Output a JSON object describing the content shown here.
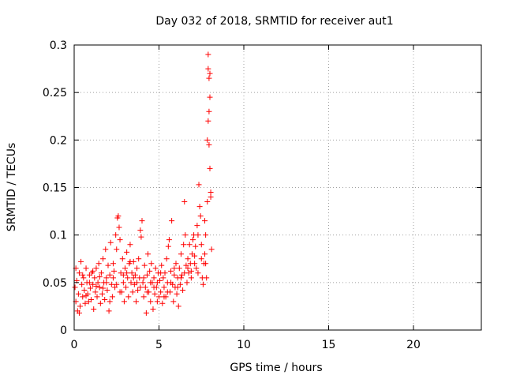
{
  "chart_data": {
    "type": "scatter",
    "title": "Day 032 of 2018, SRMTID for receiver aut1",
    "xlabel": "GPS time / hours",
    "ylabel": "SRMTID / TECUs",
    "xlim": [
      0,
      24
    ],
    "ylim": [
      0,
      0.3
    ],
    "xticks": [
      0,
      5,
      10,
      15,
      20
    ],
    "xtick_labels": [
      "0",
      "5",
      "10",
      "15",
      "20"
    ],
    "yticks": [
      0,
      0.05,
      0.1,
      0.15,
      0.2,
      0.25,
      0.3
    ],
    "ytick_labels": [
      "0",
      "0.05",
      "0.1",
      "0.15",
      "0.2",
      "0.25",
      "0.3"
    ],
    "grid": true,
    "marker": "+",
    "color": "#ff0000",
    "series": [
      {
        "name": "aut1",
        "points": [
          [
            0.05,
            0.045
          ],
          [
            0.1,
            0.03
          ],
          [
            0.15,
            0.052
          ],
          [
            0.2,
            0.02
          ],
          [
            0.25,
            0.038
          ],
          [
            0.3,
            0.06
          ],
          [
            0.35,
            0.025
          ],
          [
            0.4,
            0.072
          ],
          [
            0.45,
            0.048
          ],
          [
            0.5,
            0.035
          ],
          [
            0.55,
            0.055
          ],
          [
            0.6,
            0.042
          ],
          [
            0.65,
            0.028
          ],
          [
            0.7,
            0.065
          ],
          [
            0.75,
            0.05
          ],
          [
            0.8,
            0.038
          ],
          [
            0.85,
            0.03
          ],
          [
            0.9,
            0.058
          ],
          [
            0.95,
            0.044
          ],
          [
            1.0,
            0.032
          ],
          [
            1.05,
            0.06
          ],
          [
            1.1,
            0.048
          ],
          [
            1.15,
            0.022
          ],
          [
            1.2,
            0.055
          ],
          [
            1.25,
            0.04
          ],
          [
            1.3,
            0.065
          ],
          [
            1.35,
            0.035
          ],
          [
            1.4,
            0.05
          ],
          [
            1.45,
            0.07
          ],
          [
            1.5,
            0.045
          ],
          [
            1.55,
            0.028
          ],
          [
            1.6,
            0.06
          ],
          [
            1.65,
            0.038
          ],
          [
            1.7,
            0.075
          ],
          [
            1.75,
            0.05
          ],
          [
            1.8,
            0.032
          ],
          [
            1.85,
            0.085
          ],
          [
            1.9,
            0.055
          ],
          [
            1.95,
            0.042
          ],
          [
            2.0,
            0.068
          ],
          [
            2.05,
            0.02
          ],
          [
            2.1,
            0.058
          ],
          [
            2.15,
            0.092
          ],
          [
            2.2,
            0.048
          ],
          [
            2.25,
            0.035
          ],
          [
            2.3,
            0.07
          ],
          [
            2.35,
            0.062
          ],
          [
            2.4,
            0.045
          ],
          [
            2.45,
            0.1
          ],
          [
            2.5,
            0.085
          ],
          [
            2.55,
            0.118
          ],
          [
            2.6,
            0.12
          ],
          [
            2.65,
            0.108
          ],
          [
            2.7,
            0.095
          ],
          [
            2.75,
            0.06
          ],
          [
            2.8,
            0.04
          ],
          [
            2.85,
            0.075
          ],
          [
            2.9,
            0.05
          ],
          [
            2.95,
            0.03
          ],
          [
            3.0,
            0.065
          ],
          [
            3.05,
            0.045
          ],
          [
            3.1,
            0.082
          ],
          [
            3.15,
            0.055
          ],
          [
            3.2,
            0.035
          ],
          [
            3.25,
            0.07
          ],
          [
            3.3,
            0.09
          ],
          [
            3.35,
            0.05
          ],
          [
            3.4,
            0.06
          ],
          [
            3.45,
            0.04
          ],
          [
            3.5,
            0.072
          ],
          [
            3.55,
            0.048
          ],
          [
            3.6,
            0.058
          ],
          [
            3.65,
            0.03
          ],
          [
            3.7,
            0.065
          ],
          [
            3.75,
            0.042
          ],
          [
            3.8,
            0.075
          ],
          [
            3.85,
            0.055
          ],
          [
            3.9,
            0.105
          ],
          [
            3.95,
            0.098
          ],
          [
            4.0,
            0.115
          ],
          [
            4.05,
            0.05
          ],
          [
            4.1,
            0.035
          ],
          [
            4.15,
            0.068
          ],
          [
            4.2,
            0.045
          ],
          [
            4.25,
            0.018
          ],
          [
            4.3,
            0.058
          ],
          [
            4.35,
            0.08
          ],
          [
            4.4,
            0.04
          ],
          [
            4.45,
            0.062
          ],
          [
            4.5,
            0.03
          ],
          [
            4.55,
            0.07
          ],
          [
            4.6,
            0.05
          ],
          [
            4.65,
            0.022
          ],
          [
            4.7,
            0.055
          ],
          [
            4.75,
            0.038
          ],
          [
            4.8,
            0.065
          ],
          [
            4.85,
            0.045
          ],
          [
            4.9,
            0.03
          ],
          [
            4.95,
            0.06
          ],
          [
            5.0,
            0.035
          ],
          [
            5.05,
            0.052
          ],
          [
            5.1,
            0.04
          ],
          [
            5.15,
            0.068
          ],
          [
            5.2,
            0.028
          ],
          [
            5.25,
            0.055
          ],
          [
            5.3,
            0.045
          ],
          [
            5.35,
            0.06
          ],
          [
            5.4,
            0.035
          ],
          [
            5.45,
            0.075
          ],
          [
            5.5,
            0.05
          ],
          [
            5.55,
            0.088
          ],
          [
            5.6,
            0.095
          ],
          [
            5.65,
            0.04
          ],
          [
            5.7,
            0.062
          ],
          [
            5.75,
            0.115
          ],
          [
            5.8,
            0.048
          ],
          [
            5.85,
            0.03
          ],
          [
            5.9,
            0.058
          ],
          [
            5.95,
            0.045
          ],
          [
            6.0,
            0.07
          ],
          [
            6.05,
            0.038
          ],
          [
            6.1,
            0.055
          ],
          [
            6.15,
            0.025
          ],
          [
            6.2,
            0.065
          ],
          [
            6.25,
            0.048
          ],
          [
            6.3,
            0.08
          ],
          [
            6.35,
            0.058
          ],
          [
            6.4,
            0.042
          ],
          [
            6.45,
            0.09
          ],
          [
            6.5,
            0.135
          ],
          [
            6.55,
            0.1
          ],
          [
            6.6,
            0.068
          ],
          [
            6.65,
            0.05
          ],
          [
            6.7,
            0.075
          ],
          [
            6.75,
            0.06
          ],
          [
            6.8,
            0.09
          ],
          [
            6.85,
            0.07
          ],
          [
            6.9,
            0.055
          ],
          [
            6.95,
            0.08
          ],
          [
            7.0,
            0.095
          ],
          [
            7.05,
            0.1
          ],
          [
            7.1,
            0.078
          ],
          [
            7.15,
            0.088
          ],
          [
            7.2,
            0.065
          ],
          [
            7.25,
            0.11
          ],
          [
            7.3,
            0.1
          ],
          [
            7.35,
            0.153
          ],
          [
            7.4,
            0.13
          ],
          [
            7.45,
            0.12
          ],
          [
            7.5,
            0.09
          ],
          [
            7.55,
            0.055
          ],
          [
            7.6,
            0.048
          ],
          [
            7.65,
            0.07
          ],
          [
            7.7,
            0.115
          ],
          [
            7.75,
            0.1
          ],
          [
            7.8,
            0.055
          ],
          [
            7.85,
            0.135
          ],
          [
            7.9,
            0.29
          ],
          [
            7.95,
            0.265
          ],
          [
            8.0,
            0.27
          ],
          [
            8.05,
            0.145
          ],
          [
            8.1,
            0.085
          ],
          [
            0.1,
            0.065
          ],
          [
            0.3,
            0.018
          ],
          [
            0.5,
            0.058
          ],
          [
            0.7,
            0.036
          ],
          [
            0.9,
            0.05
          ],
          [
            1.1,
            0.062
          ],
          [
            1.3,
            0.046
          ],
          [
            1.5,
            0.056
          ],
          [
            1.7,
            0.044
          ],
          [
            1.9,
            0.05
          ],
          [
            2.1,
            0.03
          ],
          [
            2.3,
            0.055
          ],
          [
            2.5,
            0.048
          ],
          [
            2.7,
            0.04
          ],
          [
            2.9,
            0.058
          ],
          [
            3.1,
            0.06
          ],
          [
            3.3,
            0.072
          ],
          [
            3.5,
            0.055
          ],
          [
            3.7,
            0.05
          ],
          [
            3.9,
            0.045
          ],
          [
            4.1,
            0.055
          ],
          [
            4.3,
            0.04
          ],
          [
            4.5,
            0.05
          ],
          [
            4.7,
            0.045
          ],
          [
            4.9,
            0.05
          ],
          [
            5.1,
            0.06
          ],
          [
            5.3,
            0.035
          ],
          [
            5.5,
            0.04
          ],
          [
            5.7,
            0.05
          ],
          [
            5.9,
            0.065
          ],
          [
            6.1,
            0.045
          ],
          [
            6.3,
            0.055
          ],
          [
            6.5,
            0.06
          ],
          [
            6.7,
            0.065
          ],
          [
            6.9,
            0.062
          ],
          [
            7.1,
            0.07
          ],
          [
            7.3,
            0.06
          ],
          [
            7.5,
            0.075
          ],
          [
            7.7,
            0.08
          ],
          [
            7.85,
            0.2
          ],
          [
            7.9,
            0.22
          ],
          [
            7.95,
            0.23
          ],
          [
            8.0,
            0.245
          ],
          [
            7.9,
            0.275
          ],
          [
            8.0,
            0.17
          ],
          [
            7.95,
            0.195
          ],
          [
            8.05,
            0.14
          ],
          [
            7.75,
            0.07
          ]
        ]
      }
    ]
  }
}
